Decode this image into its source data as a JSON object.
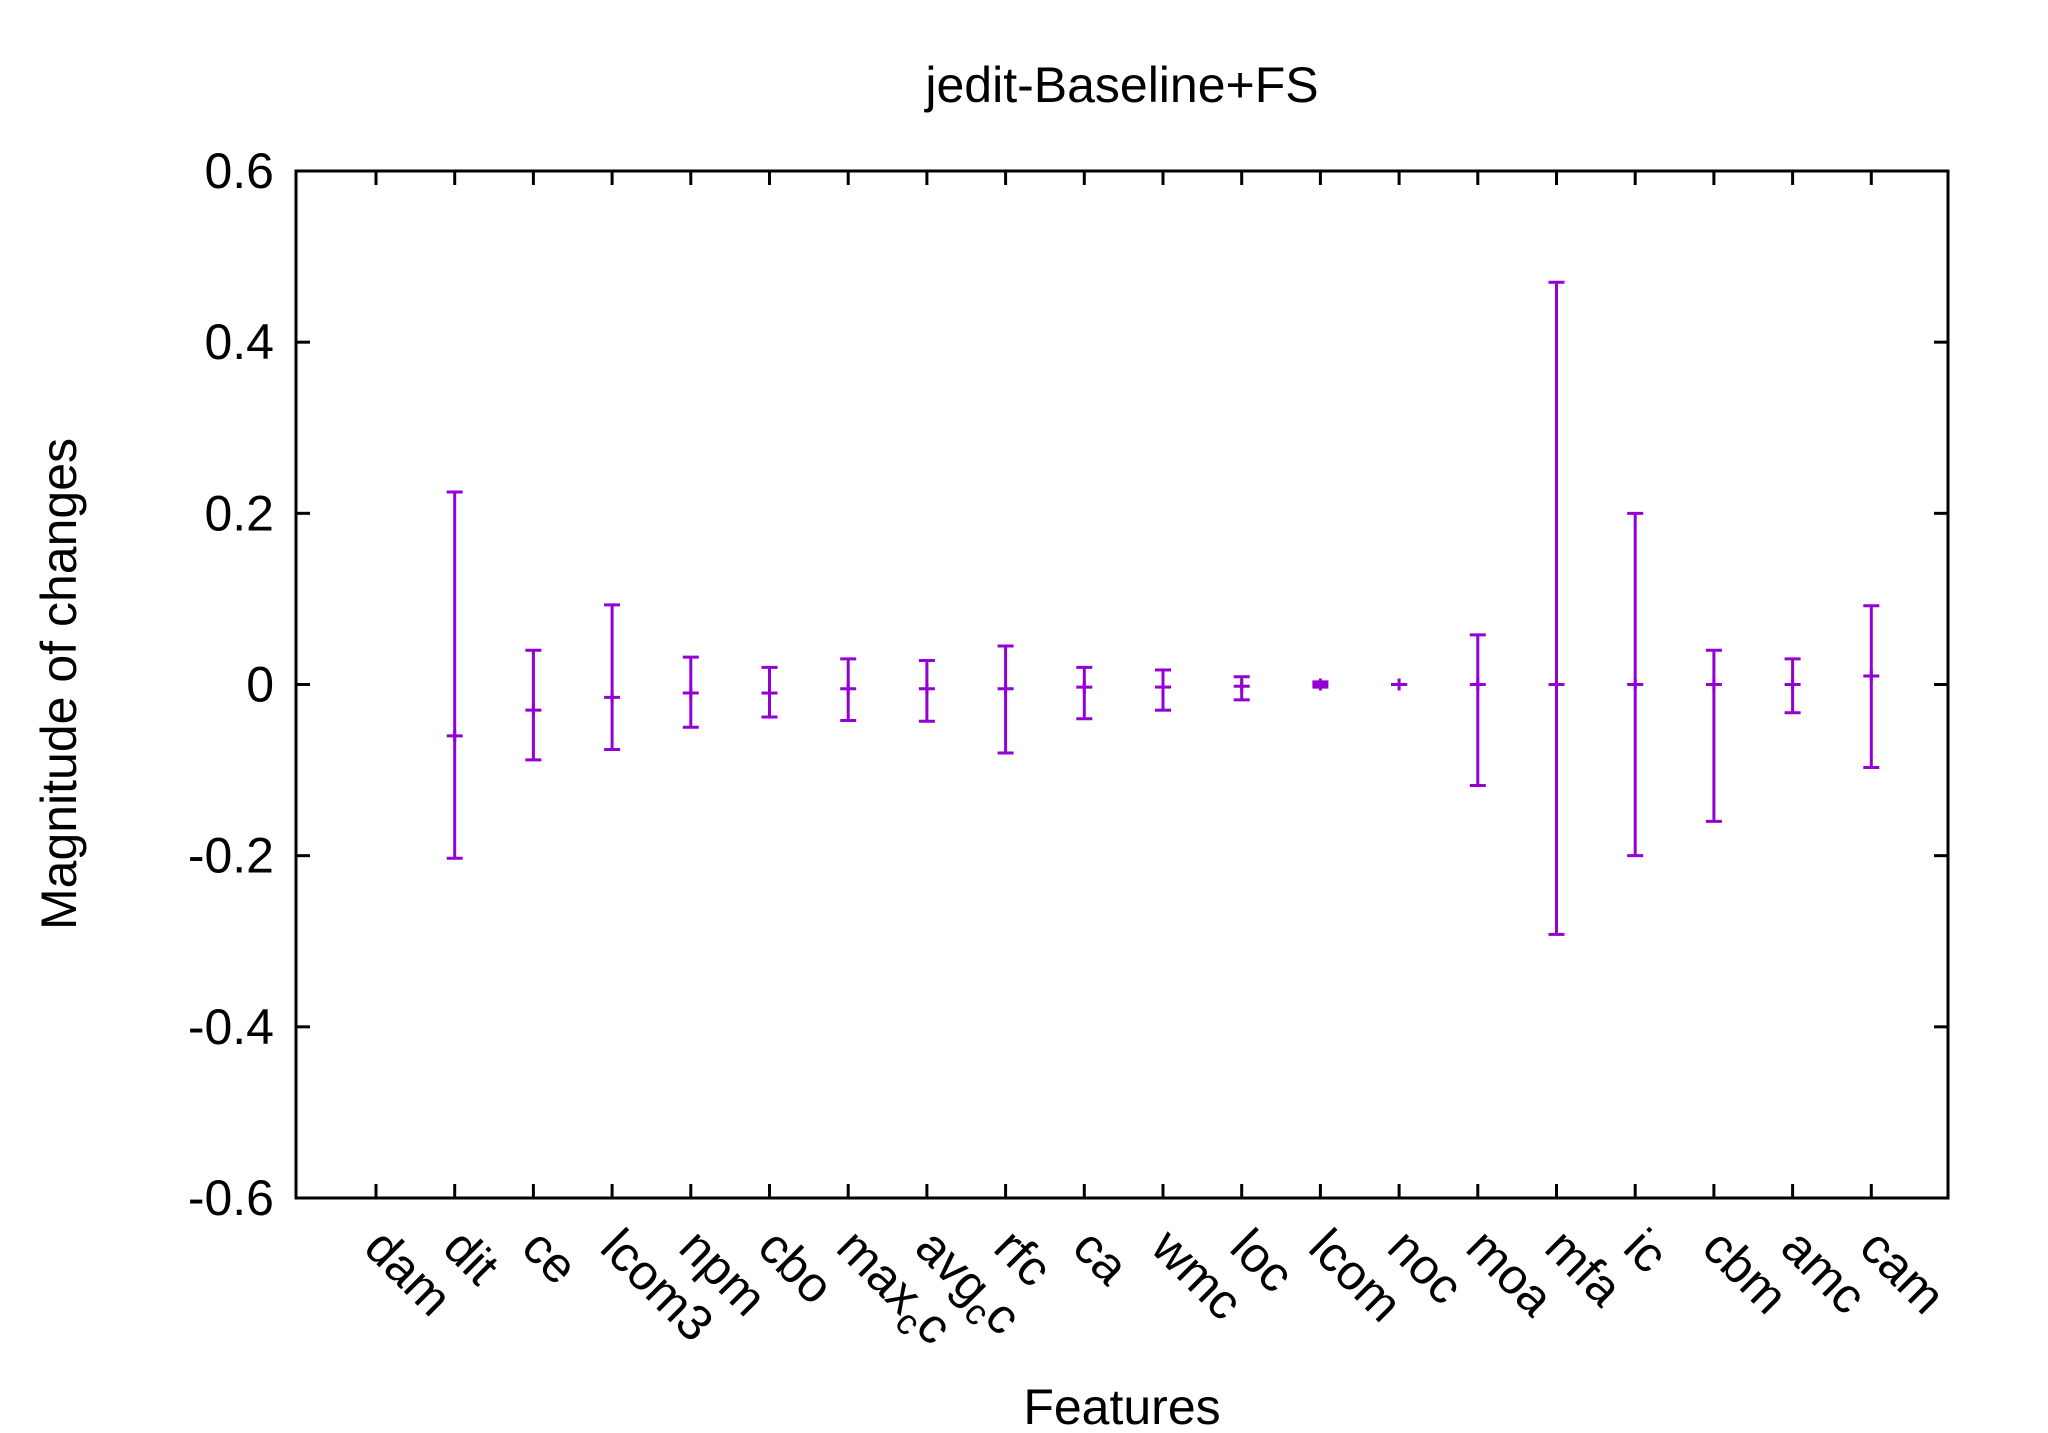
{
  "chart_data": {
    "type": "errorbar",
    "title": "jedit-Baseline+FS",
    "xlabel": "Features",
    "ylabel": "Magnitude of changes",
    "ylim": [
      -0.6,
      0.6
    ],
    "yticks": [
      "0.6",
      "0.4",
      "0.2",
      "0",
      "-0.2",
      "-0.4",
      "-0.6"
    ],
    "ytick_values": [
      0.6,
      0.4,
      0.2,
      0,
      -0.2,
      -0.4,
      -0.6
    ],
    "grid": false,
    "color": "#9400d3",
    "categories": [
      "dam",
      "dit",
      "ce",
      "lcom3",
      "npm",
      "cbo",
      "max_cc",
      "avg_cc",
      "rfc",
      "ca",
      "wmc",
      "loc",
      "lcom",
      "noc",
      "moa",
      "mfa",
      "ic",
      "cbm",
      "amc",
      "cam"
    ],
    "category_labels": [
      {
        "base": "dam",
        "sub": "",
        "tail": ""
      },
      {
        "base": "dit",
        "sub": "",
        "tail": ""
      },
      {
        "base": "ce",
        "sub": "",
        "tail": ""
      },
      {
        "base": "lcom3",
        "sub": "",
        "tail": ""
      },
      {
        "base": "npm",
        "sub": "",
        "tail": ""
      },
      {
        "base": "cbo",
        "sub": "",
        "tail": ""
      },
      {
        "base": "max",
        "sub": "c",
        "tail": "c"
      },
      {
        "base": "avg",
        "sub": "c",
        "tail": "c"
      },
      {
        "base": "rfc",
        "sub": "",
        "tail": ""
      },
      {
        "base": "ca",
        "sub": "",
        "tail": ""
      },
      {
        "base": "wmc",
        "sub": "",
        "tail": ""
      },
      {
        "base": "loc",
        "sub": "",
        "tail": ""
      },
      {
        "base": "lcom",
        "sub": "",
        "tail": ""
      },
      {
        "base": "noc",
        "sub": "",
        "tail": ""
      },
      {
        "base": "moa",
        "sub": "",
        "tail": ""
      },
      {
        "base": "mfa",
        "sub": "",
        "tail": ""
      },
      {
        "base": "ic",
        "sub": "",
        "tail": ""
      },
      {
        "base": "cbm",
        "sub": "",
        "tail": ""
      },
      {
        "base": "amc",
        "sub": "",
        "tail": ""
      },
      {
        "base": "cam",
        "sub": "",
        "tail": ""
      }
    ],
    "series": [
      {
        "center": [
          null,
          -0.06,
          -0.03,
          -0.015,
          -0.01,
          -0.01,
          -0.005,
          -0.005,
          -0.005,
          -0.003,
          -0.003,
          -0.002,
          0,
          0,
          0,
          0,
          0,
          0,
          0,
          0.01
        ],
        "low": [
          null,
          -0.203,
          -0.088,
          -0.076,
          -0.05,
          -0.038,
          -0.042,
          -0.043,
          -0.08,
          -0.04,
          -0.03,
          -0.018,
          -0.003,
          0,
          -0.118,
          -0.292,
          -0.2,
          -0.16,
          -0.033,
          -0.097
        ],
        "high": [
          null,
          0.225,
          0.04,
          0.093,
          0.032,
          0.02,
          0.03,
          0.028,
          0.045,
          0.02,
          0.017,
          0.009,
          0.003,
          0,
          0.058,
          0.47,
          0.2,
          0.04,
          0.03,
          0.092
        ]
      }
    ]
  }
}
